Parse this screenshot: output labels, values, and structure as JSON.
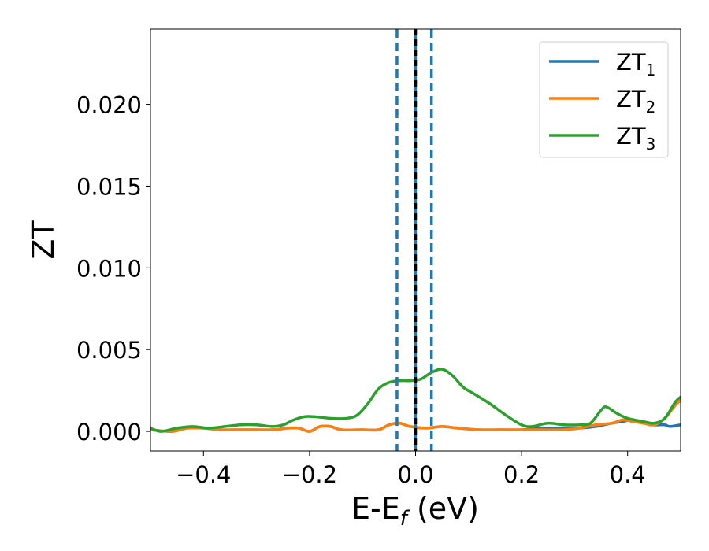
{
  "chart_data": {
    "type": "line",
    "xlabel_main": "E-E",
    "xlabel_sub": "f",
    "xlabel_unit": " (eV)",
    "ylabel": "ZT",
    "xlim": [
      -0.5,
      0.5
    ],
    "ylim": [
      -0.0012,
      0.0246
    ],
    "xticks": [
      -0.4,
      -0.2,
      0.0,
      0.2,
      0.4
    ],
    "xtick_labels": [
      "−0.4",
      "−0.2",
      "0.0",
      "0.2",
      "0.4"
    ],
    "yticks": [
      0.0,
      0.005,
      0.01,
      0.015,
      0.02
    ],
    "ytick_labels": [
      "0.000",
      "0.005",
      "0.010",
      "0.015",
      "0.020"
    ],
    "grid": false,
    "legend_position": "top-right",
    "vlines": [
      {
        "x": -0.035,
        "style": "dashed",
        "color": "#1f77b4"
      },
      {
        "x": 0.0,
        "style": "solid",
        "color": "#1f77b4"
      },
      {
        "x": 0.0,
        "style": "dashed",
        "color": "#000000"
      },
      {
        "x": 0.03,
        "style": "dashed",
        "color": "#1f77b4"
      }
    ],
    "series": [
      {
        "name": "ZT",
        "name_sub": "1",
        "color": "#1f77b4",
        "points": [
          [
            -0.5,
            0.0001
          ],
          [
            -0.46,
            0.0
          ],
          [
            -0.43,
            0.0002
          ],
          [
            -0.4,
            0.0002
          ],
          [
            -0.37,
            0.0001
          ],
          [
            -0.34,
            0.0001
          ],
          [
            -0.3,
            0.0001
          ],
          [
            -0.27,
            0.0001
          ],
          [
            -0.24,
            0.0002
          ],
          [
            -0.22,
            0.0002
          ],
          [
            -0.2,
            0.0
          ],
          [
            -0.18,
            0.0003
          ],
          [
            -0.16,
            0.0003
          ],
          [
            -0.14,
            0.0001
          ],
          [
            -0.1,
            0.0001
          ],
          [
            -0.07,
            0.0001
          ],
          [
            -0.05,
            0.0004
          ],
          [
            -0.03,
            0.0005
          ],
          [
            -0.01,
            0.0003
          ],
          [
            0.02,
            0.0002
          ],
          [
            0.05,
            0.0003
          ],
          [
            0.08,
            0.0002
          ],
          [
            0.12,
            0.0001
          ],
          [
            0.16,
            0.0001
          ],
          [
            0.2,
            0.0001
          ],
          [
            0.24,
            0.0002
          ],
          [
            0.28,
            0.0002
          ],
          [
            0.31,
            0.0002
          ],
          [
            0.34,
            0.0003
          ],
          [
            0.37,
            0.0005
          ],
          [
            0.39,
            0.0006
          ],
          [
            0.41,
            0.0007
          ],
          [
            0.43,
            0.0005
          ],
          [
            0.45,
            0.0004
          ],
          [
            0.47,
            0.0004
          ],
          [
            0.48,
            0.0003
          ],
          [
            0.5,
            0.0004
          ]
        ]
      },
      {
        "name": "ZT",
        "name_sub": "2",
        "color": "#ff7f0e",
        "points": [
          [
            -0.5,
            0.0001
          ],
          [
            -0.46,
            0.0
          ],
          [
            -0.43,
            0.0002
          ],
          [
            -0.4,
            0.0002
          ],
          [
            -0.37,
            0.0001
          ],
          [
            -0.34,
            0.0001
          ],
          [
            -0.3,
            0.0001
          ],
          [
            -0.27,
            0.0001
          ],
          [
            -0.24,
            0.0002
          ],
          [
            -0.22,
            0.0002
          ],
          [
            -0.2,
            0.0
          ],
          [
            -0.18,
            0.0003
          ],
          [
            -0.16,
            0.0003
          ],
          [
            -0.14,
            0.0001
          ],
          [
            -0.1,
            0.0001
          ],
          [
            -0.07,
            0.0001
          ],
          [
            -0.05,
            0.0004
          ],
          [
            -0.03,
            0.0005
          ],
          [
            -0.01,
            0.0003
          ],
          [
            0.02,
            0.0002
          ],
          [
            0.05,
            0.0003
          ],
          [
            0.08,
            0.0002
          ],
          [
            0.12,
            0.0001
          ],
          [
            0.16,
            0.0001
          ],
          [
            0.2,
            0.0001
          ],
          [
            0.24,
            0.0001
          ],
          [
            0.28,
            0.0001
          ],
          [
            0.31,
            0.0002
          ],
          [
            0.34,
            0.0004
          ],
          [
            0.37,
            0.0005
          ],
          [
            0.39,
            0.0007
          ],
          [
            0.41,
            0.0006
          ],
          [
            0.43,
            0.0005
          ],
          [
            0.45,
            0.0004
          ],
          [
            0.47,
            0.0008
          ],
          [
            0.49,
            0.0016
          ],
          [
            0.5,
            0.0019
          ]
        ]
      },
      {
        "name": "ZT",
        "name_sub": "3",
        "color": "#2ca02c",
        "points": [
          [
            -0.5,
            0.0002
          ],
          [
            -0.48,
            0.0
          ],
          [
            -0.45,
            0.0002
          ],
          [
            -0.42,
            0.0003
          ],
          [
            -0.39,
            0.0002
          ],
          [
            -0.36,
            0.0003
          ],
          [
            -0.33,
            0.0004
          ],
          [
            -0.3,
            0.0004
          ],
          [
            -0.27,
            0.0003
          ],
          [
            -0.25,
            0.0004
          ],
          [
            -0.23,
            0.0007
          ],
          [
            -0.21,
            0.0009
          ],
          [
            -0.19,
            0.0009
          ],
          [
            -0.16,
            0.0008
          ],
          [
            -0.13,
            0.0008
          ],
          [
            -0.11,
            0.001
          ],
          [
            -0.09,
            0.0017
          ],
          [
            -0.07,
            0.0026
          ],
          [
            -0.05,
            0.003
          ],
          [
            -0.03,
            0.0031
          ],
          [
            -0.01,
            0.0031
          ],
          [
            0.01,
            0.0032
          ],
          [
            0.03,
            0.0036
          ],
          [
            0.05,
            0.0038
          ],
          [
            0.07,
            0.0034
          ],
          [
            0.09,
            0.0027
          ],
          [
            0.11,
            0.0023
          ],
          [
            0.14,
            0.0017
          ],
          [
            0.17,
            0.001
          ],
          [
            0.2,
            0.0004
          ],
          [
            0.22,
            0.0003
          ],
          [
            0.25,
            0.0005
          ],
          [
            0.28,
            0.0004
          ],
          [
            0.31,
            0.0004
          ],
          [
            0.33,
            0.0005
          ],
          [
            0.35,
            0.0013
          ],
          [
            0.36,
            0.0015
          ],
          [
            0.38,
            0.0011
          ],
          [
            0.4,
            0.0008
          ],
          [
            0.43,
            0.0006
          ],
          [
            0.45,
            0.0005
          ],
          [
            0.47,
            0.0008
          ],
          [
            0.49,
            0.0018
          ],
          [
            0.5,
            0.0021
          ]
        ]
      }
    ]
  }
}
